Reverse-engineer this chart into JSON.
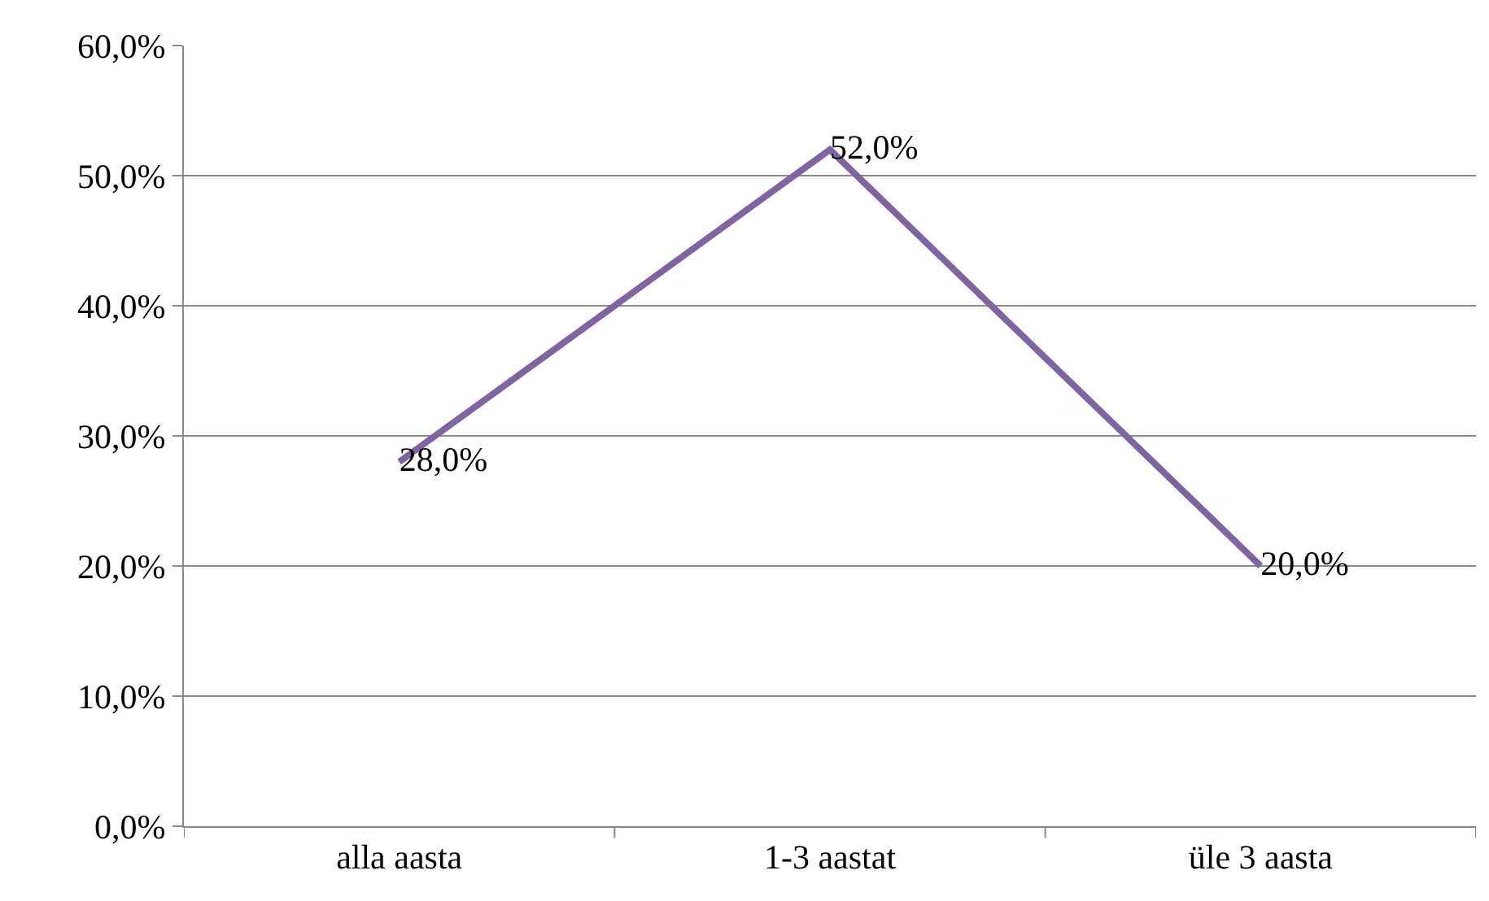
{
  "chart_data": {
    "type": "line",
    "categories": [
      "alla aasta",
      "1-3 aastat",
      "üle 3 aasta"
    ],
    "series": [
      {
        "color": "#8064a2",
        "values": [
          28,
          52,
          20
        ],
        "value_labels": [
          "28,0%",
          "52,0%",
          "20,0%"
        ]
      }
    ],
    "ylim": [
      0,
      60
    ],
    "yticks": [
      {
        "value": 0,
        "label": "0,0%"
      },
      {
        "value": 10,
        "label": "10,0%"
      },
      {
        "value": 20,
        "label": "20,0%"
      },
      {
        "value": 30,
        "label": "30,0%"
      },
      {
        "value": 40,
        "label": "40,0%"
      },
      {
        "value": 50,
        "label": "50,0%"
      },
      {
        "value": 60,
        "label": "60,0%"
      }
    ],
    "grid": "y"
  }
}
